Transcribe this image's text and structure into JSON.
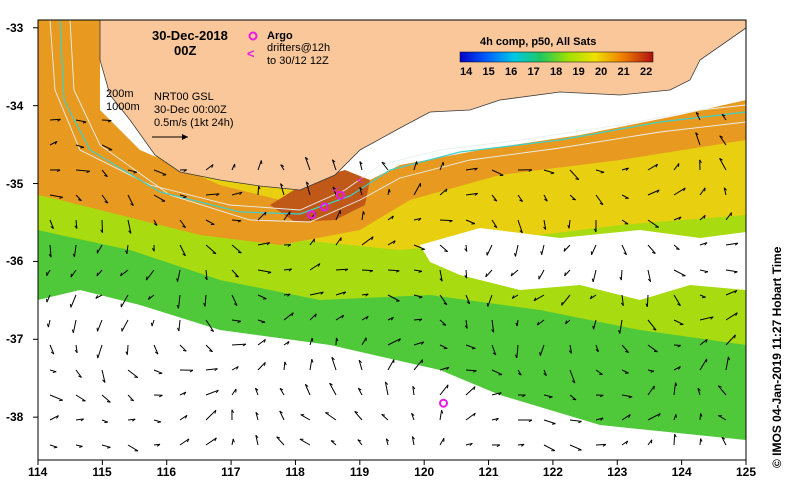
{
  "map": {
    "date": "30-Dec-2018",
    "time": "00Z",
    "legend_argo": "Argo",
    "legend_drifters": "drifters@12h",
    "legend_drifters2": "to 30/12 12Z",
    "colorbar_title": "4h comp, p50, All Sats",
    "colorbar_ticks": [
      "14",
      "15",
      "16",
      "17",
      "18",
      "19",
      "20",
      "21",
      "22"
    ],
    "depth_200": "200m",
    "depth_1000": "1000m",
    "product": "NRT00 GSL",
    "product_time": "30-Dec 00:00Z",
    "scale": "0.5m/s (1kt 24h)",
    "x_ticks": [
      "114",
      "115",
      "116",
      "117",
      "118",
      "119",
      "120",
      "121",
      "122",
      "123",
      "124",
      "125"
    ],
    "y_ticks": [
      "-33",
      "-34",
      "-35",
      "-36",
      "-37",
      "-38"
    ],
    "credit": "© IMOS 04-Jan-2019 11:27 Hobart Time"
  },
  "colors": {
    "land": "#f9c79a",
    "argo": "#e61ce6",
    "current_path": "#3fd0c8"
  },
  "icons": {
    "argo": "argo-float-icon",
    "drifter": "drifter-track-icon",
    "arrow": "velocity-arrow-icon"
  },
  "argo_floats": [
    {
      "lon": 118.25,
      "lat": -35.4
    },
    {
      "lon": 118.45,
      "lat": -35.3
    },
    {
      "lon": 118.7,
      "lat": -35.15
    },
    {
      "lon": 120.3,
      "lat": -37.82
    }
  ]
}
